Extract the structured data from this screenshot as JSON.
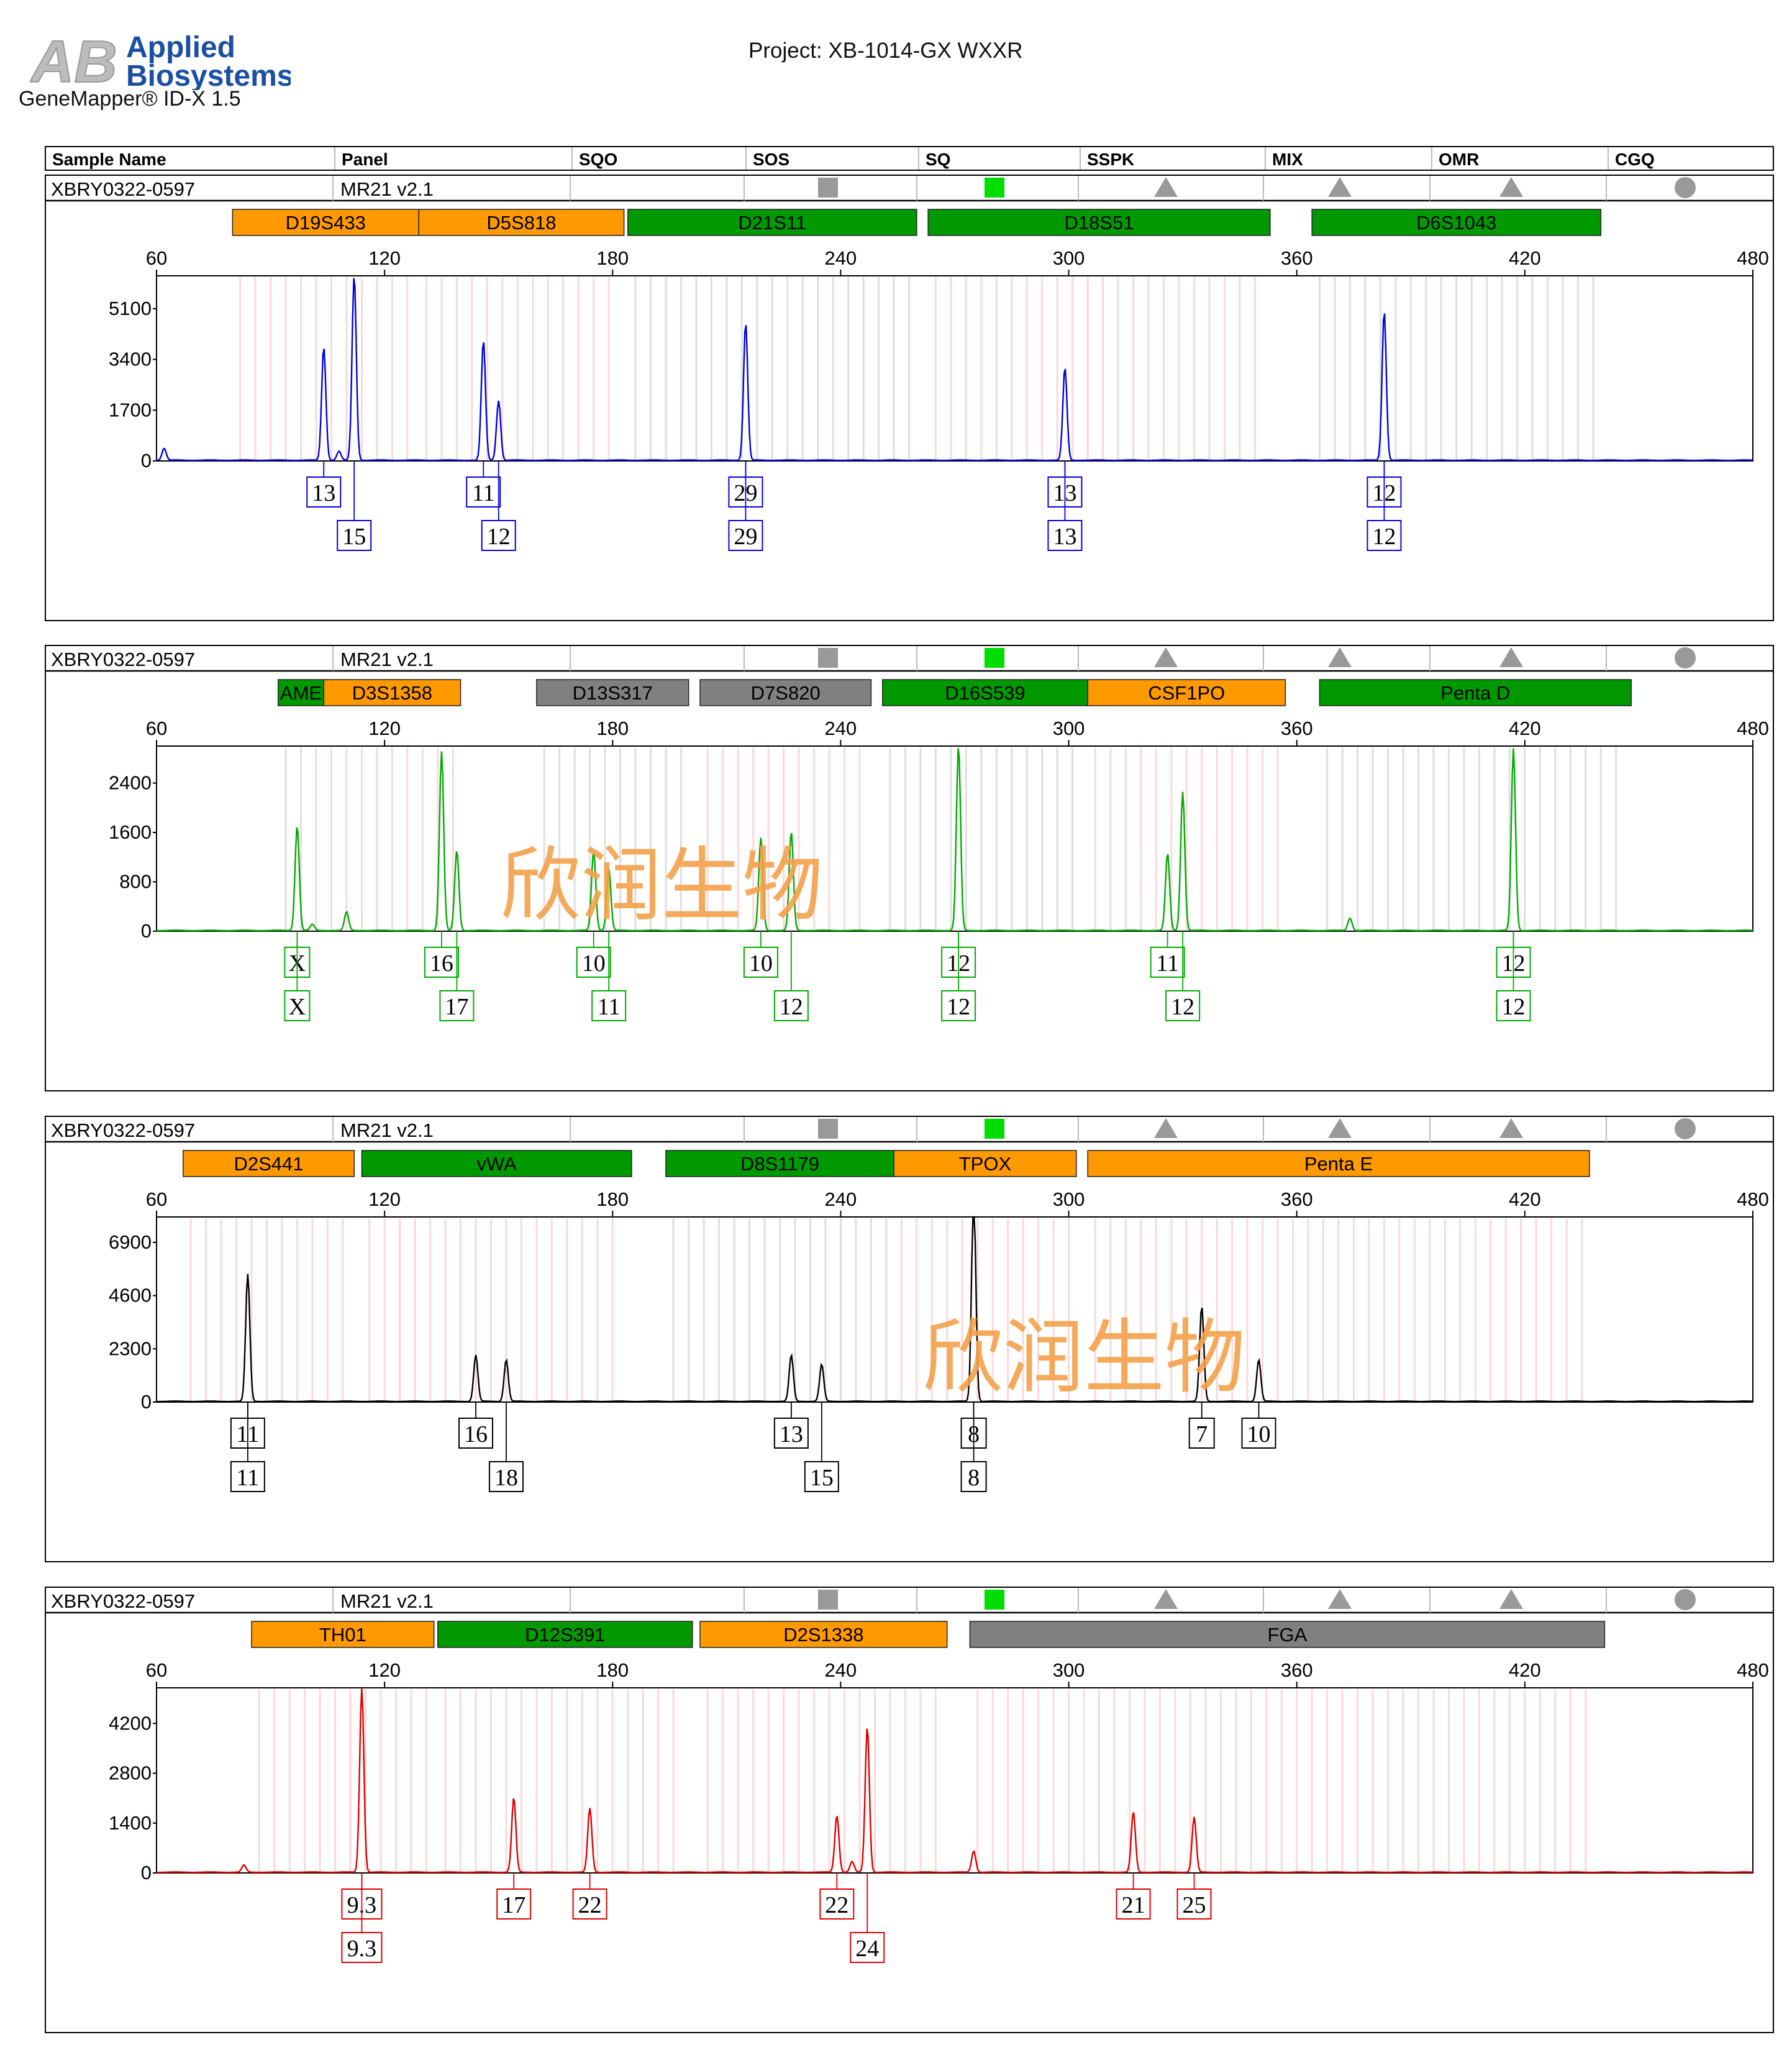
{
  "header": {
    "logo_line1": "Applied",
    "logo_line2": "Biosystems",
    "logo_mark": "AB",
    "software": "GeneMapper® ID-X  1.5",
    "project": "Project: XB-1014-GX WXXR",
    "columns": [
      "Sample Name",
      "Panel",
      "SQO",
      "SOS",
      "SQ",
      "SSPK",
      "MIX",
      "OMR",
      "CGQ"
    ]
  },
  "watermark": "欣润生物",
  "colors": {
    "orange": "#ff9900",
    "green": "#009900",
    "gray": "#808080",
    "blue": "#0000dd",
    "dye_green": "#00aa00",
    "black": "#000000",
    "red": "#dd0000",
    "sq_indicator": "#00dd00"
  },
  "quality_indicators": {
    "SOS": "gray-square",
    "SQ": "green-square",
    "SSPK": "gray-triangle",
    "MIX": "gray-triangle",
    "OMR": "gray-triangle",
    "CGQ": "gray-circle"
  },
  "chart_data": [
    {
      "type": "line",
      "sample_name": "XBRY0322-0597",
      "panel": "MR21  v2.1",
      "color": "#0000dd",
      "xlim": [
        60,
        480
      ],
      "xticks": [
        60,
        120,
        180,
        240,
        300,
        360,
        420,
        480
      ],
      "ylim": [
        0,
        6200
      ],
      "yticks": [
        0,
        1700,
        3400,
        5100
      ],
      "markers": [
        {
          "name": "D19S433",
          "start": 80,
          "end": 129,
          "color": "orange"
        },
        {
          "name": "D5S818",
          "start": 129,
          "end": 183,
          "color": "orange"
        },
        {
          "name": "D21S11",
          "start": 184,
          "end": 260,
          "color": "green"
        },
        {
          "name": "D18S51",
          "start": 263,
          "end": 353,
          "color": "green"
        },
        {
          "name": "D6S1043",
          "start": 364,
          "end": 440,
          "color": "green"
        }
      ],
      "peaks": [
        [
          62,
          400
        ],
        [
          104,
          3800
        ],
        [
          108,
          300
        ],
        [
          112,
          6200
        ],
        [
          146,
          4000
        ],
        [
          150,
          2000
        ],
        [
          215,
          4600
        ],
        [
          299,
          3100
        ],
        [
          383,
          5000
        ]
      ],
      "alleles": [
        {
          "label": "13",
          "x": 104,
          "row": 1
        },
        {
          "label": "15",
          "x": 112,
          "row": 2
        },
        {
          "label": "11",
          "x": 146,
          "row": 1
        },
        {
          "label": "12",
          "x": 150,
          "row": 2
        },
        {
          "label": "29",
          "x": 215,
          "row": 1
        },
        {
          "label": "29",
          "x": 215,
          "row": 2
        },
        {
          "label": "13",
          "x": 299,
          "row": 1
        },
        {
          "label": "13",
          "x": 299,
          "row": 2
        },
        {
          "label": "12",
          "x": 383,
          "row": 1
        },
        {
          "label": "12",
          "x": 383,
          "row": 2
        }
      ]
    },
    {
      "type": "line",
      "sample_name": "XBRY0322-0597",
      "panel": "MR21  v2.1",
      "color": "#00aa00",
      "xlim": [
        60,
        480
      ],
      "xticks": [
        60,
        120,
        180,
        240,
        300,
        360,
        420,
        480
      ],
      "ylim": [
        0,
        3000
      ],
      "yticks": [
        0,
        800,
        1600,
        2400
      ],
      "markers": [
        {
          "name": "AME",
          "start": 92,
          "end": 104,
          "color": "green"
        },
        {
          "name": "D3S1358",
          "start": 104,
          "end": 140,
          "color": "orange"
        },
        {
          "name": "D13S317",
          "start": 160,
          "end": 200,
          "color": "gray"
        },
        {
          "name": "D7S820",
          "start": 203,
          "end": 248,
          "color": "gray"
        },
        {
          "name": "D16S539",
          "start": 251,
          "end": 305,
          "color": "green"
        },
        {
          "name": "CSF1PO",
          "start": 305,
          "end": 357,
          "color": "orange"
        },
        {
          "name": "Penta D",
          "start": 366,
          "end": 448,
          "color": "green"
        }
      ],
      "peaks": [
        [
          97,
          1700
        ],
        [
          101,
          100
        ],
        [
          110,
          300
        ],
        [
          135,
          2900
        ],
        [
          139,
          1300
        ],
        [
          175,
          1300
        ],
        [
          179,
          1000
        ],
        [
          219,
          1500
        ],
        [
          227,
          1600
        ],
        [
          271,
          3000
        ],
        [
          326,
          1250
        ],
        [
          330,
          2250
        ],
        [
          374,
          200
        ],
        [
          417,
          2950
        ]
      ],
      "alleles": [
        {
          "label": "X",
          "x": 97,
          "row": 1
        },
        {
          "label": "X",
          "x": 97,
          "row": 2
        },
        {
          "label": "16",
          "x": 135,
          "row": 1
        },
        {
          "label": "17",
          "x": 139,
          "row": 2
        },
        {
          "label": "10",
          "x": 175,
          "row": 1
        },
        {
          "label": "11",
          "x": 179,
          "row": 2
        },
        {
          "label": "10",
          "x": 219,
          "row": 1
        },
        {
          "label": "12",
          "x": 227,
          "row": 2
        },
        {
          "label": "12",
          "x": 271,
          "row": 1
        },
        {
          "label": "12",
          "x": 271,
          "row": 2
        },
        {
          "label": "11",
          "x": 326,
          "row": 1
        },
        {
          "label": "12",
          "x": 330,
          "row": 2
        },
        {
          "label": "12",
          "x": 417,
          "row": 1
        },
        {
          "label": "12",
          "x": 417,
          "row": 2
        }
      ]
    },
    {
      "type": "line",
      "sample_name": "XBRY0322-0597",
      "panel": "MR21  v2.1",
      "color": "#000000",
      "xlim": [
        60,
        480
      ],
      "xticks": [
        60,
        120,
        180,
        240,
        300,
        360,
        420,
        480
      ],
      "ylim": [
        0,
        8000
      ],
      "yticks": [
        0,
        2300,
        4600,
        6900
      ],
      "markers": [
        {
          "name": "D2S441",
          "start": 67,
          "end": 112,
          "color": "orange"
        },
        {
          "name": "vWA",
          "start": 114,
          "end": 185,
          "color": "green"
        },
        {
          "name": "D8S1179",
          "start": 194,
          "end": 254,
          "color": "green"
        },
        {
          "name": "TPOX",
          "start": 254,
          "end": 302,
          "color": "orange"
        },
        {
          "name": "Penta E",
          "start": 305,
          "end": 437,
          "color": "orange"
        }
      ],
      "peaks": [
        [
          84,
          5500
        ],
        [
          144,
          2000
        ],
        [
          152,
          1800
        ],
        [
          227,
          2000
        ],
        [
          235,
          1600
        ],
        [
          275,
          9100
        ],
        [
          335,
          4100
        ],
        [
          350,
          1800
        ]
      ],
      "alleles": [
        {
          "label": "11",
          "x": 84,
          "row": 1
        },
        {
          "label": "11",
          "x": 84,
          "row": 2
        },
        {
          "label": "16",
          "x": 144,
          "row": 1
        },
        {
          "label": "18",
          "x": 152,
          "row": 2
        },
        {
          "label": "13",
          "x": 227,
          "row": 1
        },
        {
          "label": "15",
          "x": 235,
          "row": 2
        },
        {
          "label": "8",
          "x": 275,
          "row": 1
        },
        {
          "label": "8",
          "x": 275,
          "row": 2
        },
        {
          "label": "7",
          "x": 335,
          "row": 1
        },
        {
          "label": "10",
          "x": 350,
          "row": 1
        }
      ]
    },
    {
      "type": "line",
      "sample_name": "XBRY0322-0597",
      "panel": "MR21  v2.1",
      "color": "#dd0000",
      "xlim": [
        60,
        480
      ],
      "xticks": [
        60,
        120,
        180,
        240,
        300,
        360,
        420,
        480
      ],
      "ylim": [
        0,
        5200
      ],
      "yticks": [
        0,
        1400,
        2800,
        4200
      ],
      "markers": [
        {
          "name": "TH01",
          "start": 85,
          "end": 133,
          "color": "orange"
        },
        {
          "name": "D12S391",
          "start": 134,
          "end": 201,
          "color": "green"
        },
        {
          "name": "D2S1338",
          "start": 203,
          "end": 268,
          "color": "orange"
        },
        {
          "name": "FGA",
          "start": 274,
          "end": 441,
          "color": "gray"
        }
      ],
      "peaks": [
        [
          83,
          200
        ],
        [
          114,
          5200
        ],
        [
          154,
          2100
        ],
        [
          174,
          1800
        ],
        [
          239,
          1600
        ],
        [
          243,
          300
        ],
        [
          247,
          4100
        ],
        [
          275,
          600
        ],
        [
          317,
          1700
        ],
        [
          333,
          1550
        ]
      ],
      "alleles": [
        {
          "label": "9.3",
          "x": 114,
          "row": 1
        },
        {
          "label": "9.3",
          "x": 114,
          "row": 2
        },
        {
          "label": "17",
          "x": 154,
          "row": 1
        },
        {
          "label": "22",
          "x": 174,
          "row": 1
        },
        {
          "label": "22",
          "x": 239,
          "row": 1
        },
        {
          "label": "24",
          "x": 247,
          "row": 2
        },
        {
          "label": "21",
          "x": 317,
          "row": 1
        },
        {
          "label": "25",
          "x": 333,
          "row": 1
        }
      ]
    }
  ]
}
